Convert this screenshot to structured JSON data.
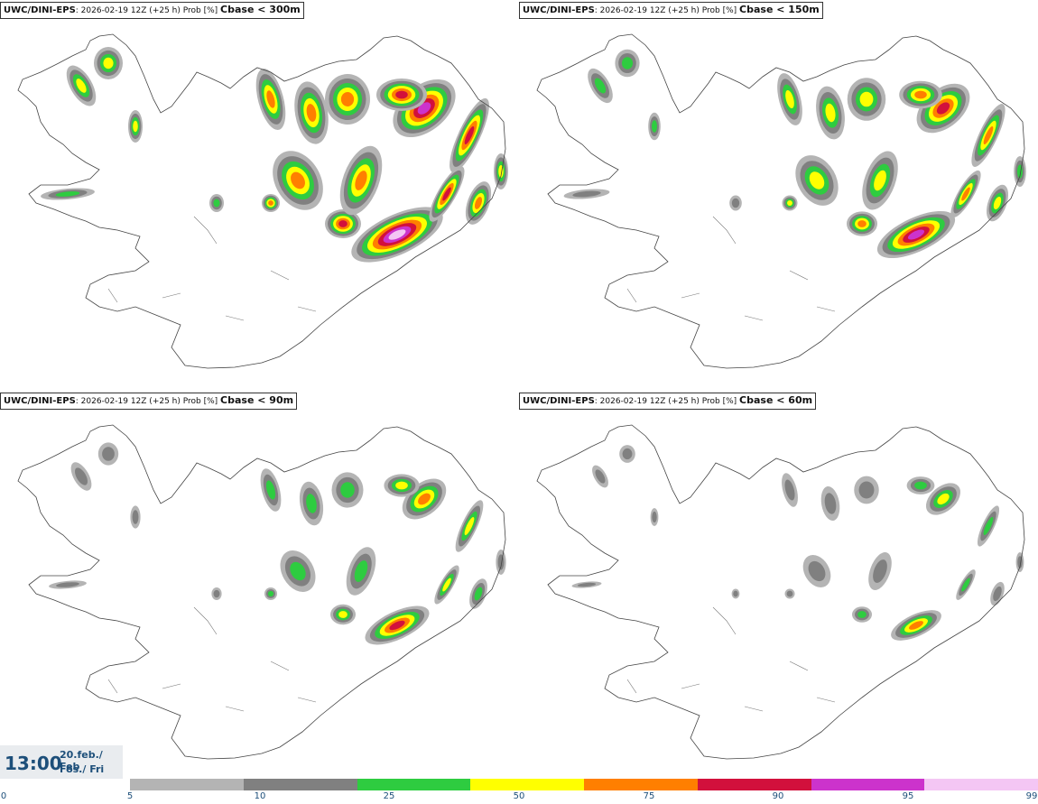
{
  "panels": [
    {
      "model": "UWC/DINI-EPS",
      "run_info": ": 2026-02-19 12Z (+25 h) Prob [%]",
      "variable": "Cbase < 300m",
      "level": 4
    },
    {
      "model": "UWC/DINI-EPS",
      "run_info": ": 2026-02-19 12Z (+25 h) Prob [%]",
      "variable": "Cbase < 150m",
      "level": 3
    },
    {
      "model": "UWC/DINI-EPS",
      "run_info": ": 2026-02-19 12Z (+25 h) Prob [%]",
      "variable": "Cbase < 90m",
      "level": 2
    },
    {
      "model": "UWC/DINI-EPS",
      "run_info": ": 2026-02-19 12Z (+25 h) Prob [%]",
      "variable": "Cbase < 60m",
      "level": 1
    }
  ],
  "valid_time": {
    "time": "13:00",
    "date_line1": "20.feb./ Feb",
    "date_line2": "Fös./ Fri"
  },
  "colorbar": {
    "ticks": [
      "0",
      "5",
      "10",
      "25",
      "50",
      "75",
      "90",
      "95",
      "99"
    ],
    "colors": [
      "#b4b4b4",
      "#808080",
      "#2ecc40",
      "#ffff00",
      "#ff7f00",
      "#d2103c",
      "#cc33cc",
      "#f4c6f4"
    ]
  }
}
